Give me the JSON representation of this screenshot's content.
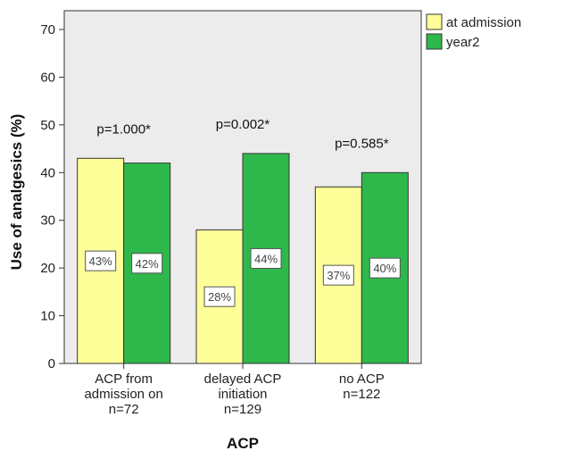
{
  "chart_data": {
    "type": "bar",
    "title": "",
    "xlabel": "ACP",
    "ylabel": "Use of analgesics (%)",
    "ylim": [
      0,
      70
    ],
    "yticks": [
      0,
      10,
      20,
      30,
      40,
      50,
      60,
      70
    ],
    "grid": false,
    "legend_position": "top-right",
    "categories": [
      [
        "ACP from",
        "admission on",
        "n=72"
      ],
      [
        "delayed ACP",
        "initiation",
        "n=129"
      ],
      [
        "no ACP",
        "n=122"
      ]
    ],
    "series": [
      {
        "name": "at admission",
        "color": "#ffff99",
        "values": [
          43,
          28,
          37
        ],
        "labels": [
          "43%",
          "28%",
          "37%"
        ]
      },
      {
        "name": "year2",
        "color": "#2eb84b",
        "values": [
          42,
          44,
          40
        ],
        "labels": [
          "42%",
          "44%",
          "40%"
        ]
      }
    ],
    "annotations": [
      "p=1.000*",
      "p=0.002*",
      "p=0.585*"
    ]
  }
}
